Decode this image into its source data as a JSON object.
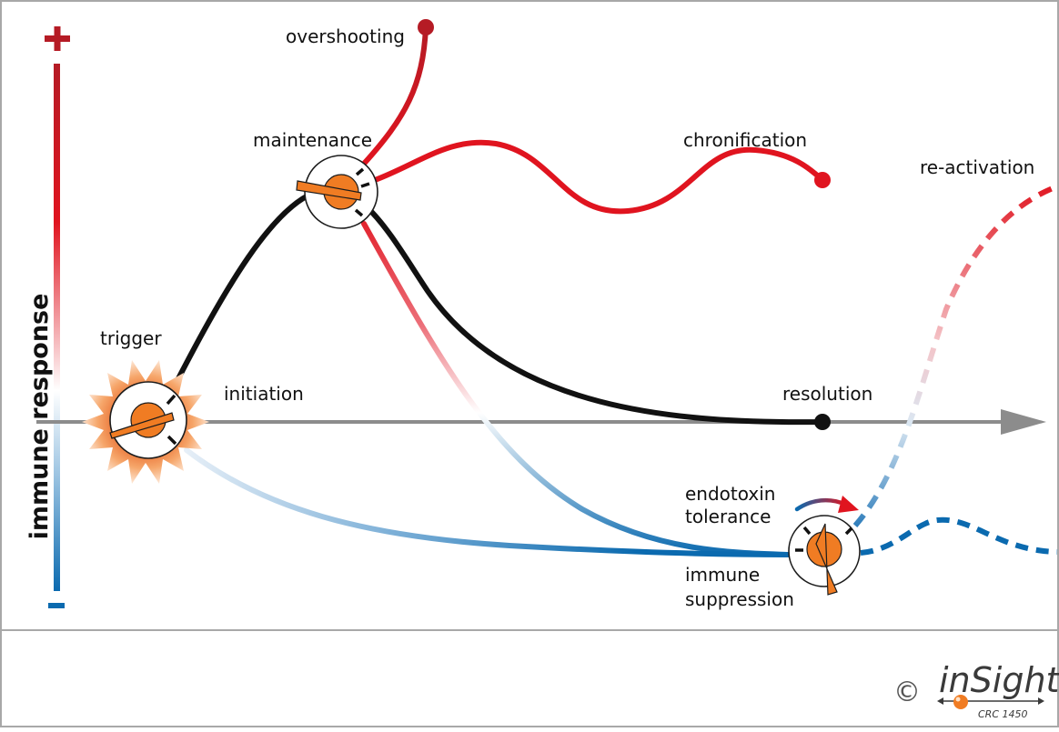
{
  "diagram": {
    "y_axis": {
      "label": "immune response",
      "plus_sign": "+",
      "minus_sign": "−"
    },
    "labels": {
      "overshooting": "overshooting",
      "maintenance": "maintenance",
      "chronification": "chronification",
      "re_activation": "re-activation",
      "trigger": "trigger",
      "initiation": "initiation",
      "resolution": "resolution",
      "endotoxin_line1": "endotoxin",
      "endotoxin_line2": "tolerance",
      "suppression_line1": "immune",
      "suppression_line2": "suppression"
    },
    "colors": {
      "pro_inflammatory": "#e0141f",
      "anti_inflammatory": "#0b6aaf",
      "resolution": "#111111",
      "axis": "#8c8c8c",
      "dial": "#f07c23",
      "border": "#a8a8a8"
    }
  },
  "footer": {
    "copyright": "©",
    "logo_text": "inSight",
    "logo_sub": "CRC 1450"
  }
}
